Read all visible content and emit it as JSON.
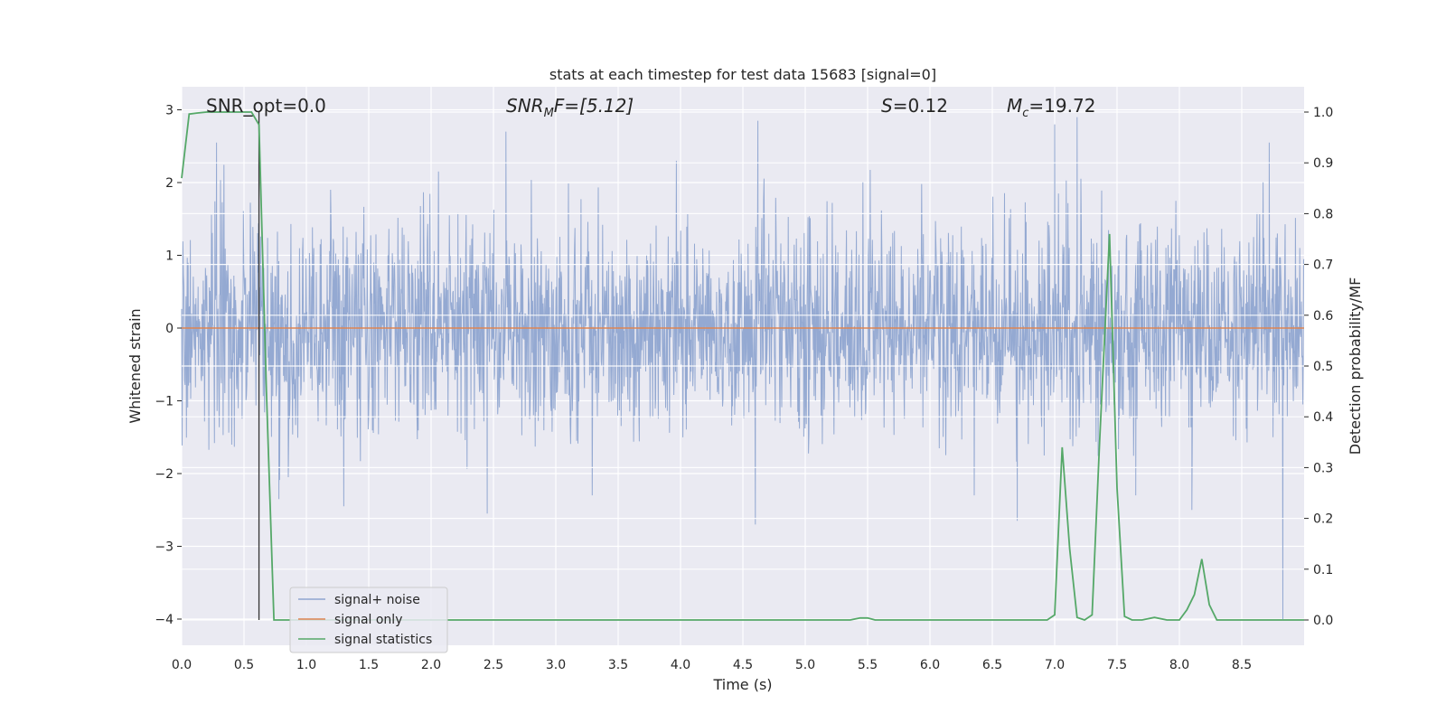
{
  "chart_data": {
    "type": "line",
    "title": "stats at each timestep for test data 15683 [signal=0]",
    "xlabel": "Time (s)",
    "ylabel_left": "Whitened strain",
    "ylabel_right": "Detection probability/MF",
    "xlim": [
      0.0,
      9.0
    ],
    "ylim_left": [
      -4.33,
      3.3
    ],
    "ylim_right": [
      -0.05,
      1.05
    ],
    "grid": true,
    "legend_placement": "lower-left",
    "x_ticks": [
      "0.0",
      "0.5",
      "1.0",
      "1.5",
      "2.0",
      "2.5",
      "3.0",
      "3.5",
      "4.0",
      "4.5",
      "5.0",
      "5.5",
      "6.0",
      "6.5",
      "7.0",
      "7.5",
      "8.0",
      "8.5"
    ],
    "y_left_ticks": [
      "3",
      "2",
      "1",
      "0",
      "−1",
      "−2",
      "−3",
      "−4"
    ],
    "y_right_ticks": [
      "1.0",
      "0.9",
      "0.8",
      "0.7",
      "0.6",
      "0.5",
      "0.4",
      "0.3",
      "0.2",
      "0.1",
      "0.0"
    ],
    "annotations": {
      "snr_opt": "SNR_opt=0.0",
      "snr_mf_main": "SNR",
      "snr_mf_sub": "M",
      "snr_mf_rest": "F=[5.12]",
      "s_main": "S",
      "s_rest": "=0.12",
      "mc_main": "M",
      "mc_sub": "c",
      "mc_rest": "=19.72"
    },
    "marker_line_x": 0.62,
    "series": [
      {
        "name": "signal+ noise",
        "color": "#8fa5d0",
        "note_envelope": true,
        "envelope_upper_typical": 1.55,
        "envelope_lower_typical": -1.55,
        "notable_peaks": [
          [
            0.28,
            2.55
          ],
          [
            2.6,
            2.7
          ],
          [
            4.62,
            2.85
          ],
          [
            7.0,
            2.8
          ],
          [
            7.18,
            2.9
          ],
          [
            8.72,
            2.55
          ]
        ],
        "notable_troughs": [
          [
            0.78,
            -2.35
          ],
          [
            1.3,
            -2.45
          ],
          [
            2.45,
            -2.55
          ],
          [
            4.6,
            -2.7
          ],
          [
            6.7,
            -2.65
          ],
          [
            7.65,
            -2.3
          ],
          [
            8.1,
            -2.5
          ],
          [
            8.83,
            -4.0
          ]
        ]
      },
      {
        "name": "signal only",
        "color": "#dd8452",
        "x": [
          0.0,
          9.0
        ],
        "y": [
          0.0,
          0.0
        ]
      },
      {
        "name": "signal statistics",
        "color": "#55a868",
        "axis": "right",
        "x": [
          0.0,
          0.06,
          0.12,
          0.2,
          0.3,
          0.4,
          0.5,
          0.56,
          0.62,
          0.68,
          0.74,
          0.8,
          1.0,
          2.0,
          3.0,
          4.0,
          5.0,
          5.36,
          5.44,
          5.5,
          5.56,
          5.62,
          6.0,
          6.5,
          6.94,
          7.0,
          7.06,
          7.12,
          7.18,
          7.24,
          7.3,
          7.36,
          7.44,
          7.5,
          7.56,
          7.62,
          7.7,
          7.8,
          7.9,
          8.0,
          8.06,
          8.12,
          8.18,
          8.24,
          8.3,
          8.36,
          8.5,
          9.0
        ],
        "y": [
          0.87,
          0.996,
          0.998,
          1.0,
          1.0,
          1.0,
          1.0,
          1.0,
          0.975,
          0.45,
          0.0,
          0.0,
          0.0,
          0.0,
          0.0,
          0.0,
          0.0,
          0.0,
          0.004,
          0.004,
          0.0,
          0.0,
          0.0,
          0.0,
          0.0,
          0.01,
          0.34,
          0.14,
          0.005,
          0.0,
          0.01,
          0.35,
          0.76,
          0.26,
          0.007,
          0.0,
          0.0,
          0.005,
          0.0,
          0.0,
          0.02,
          0.05,
          0.12,
          0.03,
          0.0,
          0.0,
          0.0,
          0.0
        ]
      }
    ]
  }
}
